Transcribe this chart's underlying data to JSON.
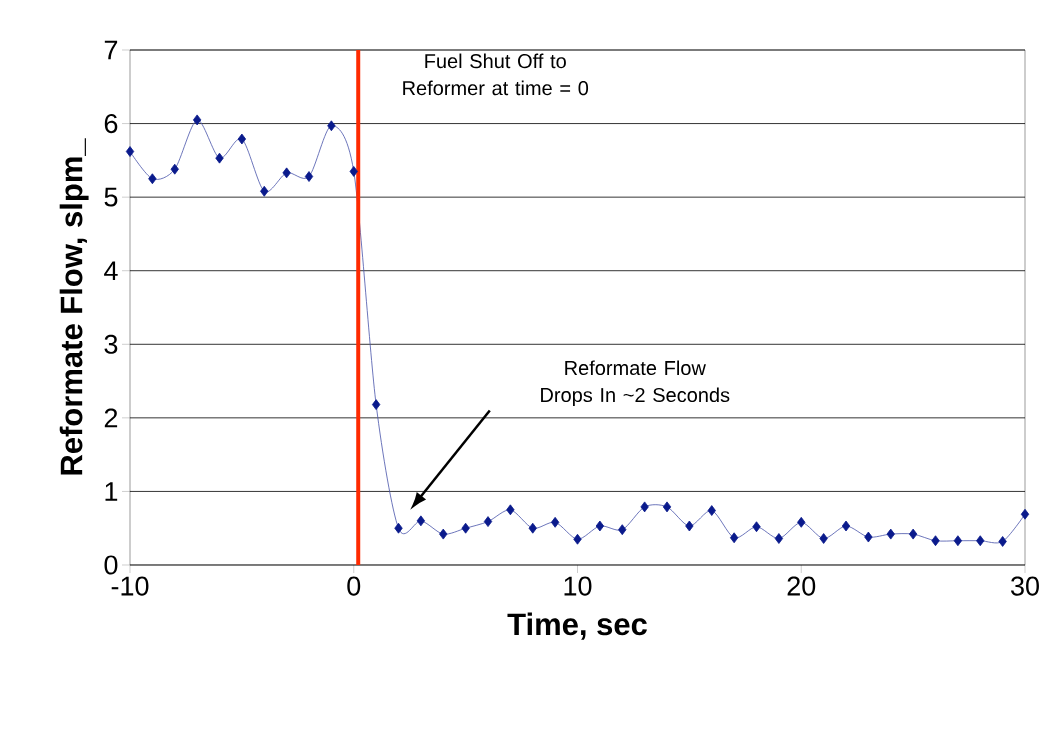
{
  "chart_data": {
    "type": "line",
    "xlabel": "Time, sec",
    "ylabel": "Reformate Flow, slpm_",
    "x": [
      -10,
      -9,
      -8,
      -7,
      -6,
      -5,
      -4,
      -3,
      -2,
      -1,
      0,
      1,
      2,
      3,
      4,
      5,
      6,
      7,
      8,
      9,
      10,
      11,
      12,
      13,
      14,
      15,
      16,
      17,
      18,
      19,
      20,
      21,
      22,
      23,
      24,
      25,
      26,
      27,
      28,
      29,
      30
    ],
    "series": [
      {
        "color": "#0a1a8c",
        "values": [
          5.62,
          5.25,
          5.38,
          6.05,
          5.53,
          5.79,
          5.08,
          5.33,
          5.28,
          5.97,
          5.35,
          2.18,
          0.5,
          0.6,
          0.42,
          0.5,
          0.59,
          0.75,
          0.5,
          0.58,
          0.35,
          0.53,
          0.48,
          0.79,
          0.79,
          0.53,
          0.74,
          0.37,
          0.52,
          0.36,
          0.58,
          0.36,
          0.53,
          0.38,
          0.42,
          0.42,
          0.33,
          0.33,
          0.33,
          0.32,
          0.69
        ]
      }
    ],
    "xlim": [
      -10,
      30
    ],
    "xticks": [
      -10,
      0,
      10,
      20,
      30
    ],
    "ylim": [
      0,
      7
    ],
    "yticks": [
      0,
      1,
      2,
      3,
      4,
      5,
      6,
      7
    ],
    "grid": "y",
    "marker": "diamond",
    "ref_lines": [
      {
        "axis": "x",
        "value": 0.2,
        "label": "Fuel Shut Off to Reformer at time = 0",
        "color": "#ff2a00"
      }
    ],
    "annotations": [
      "Reformate Flow Drops In ~2 Seconds"
    ]
  }
}
